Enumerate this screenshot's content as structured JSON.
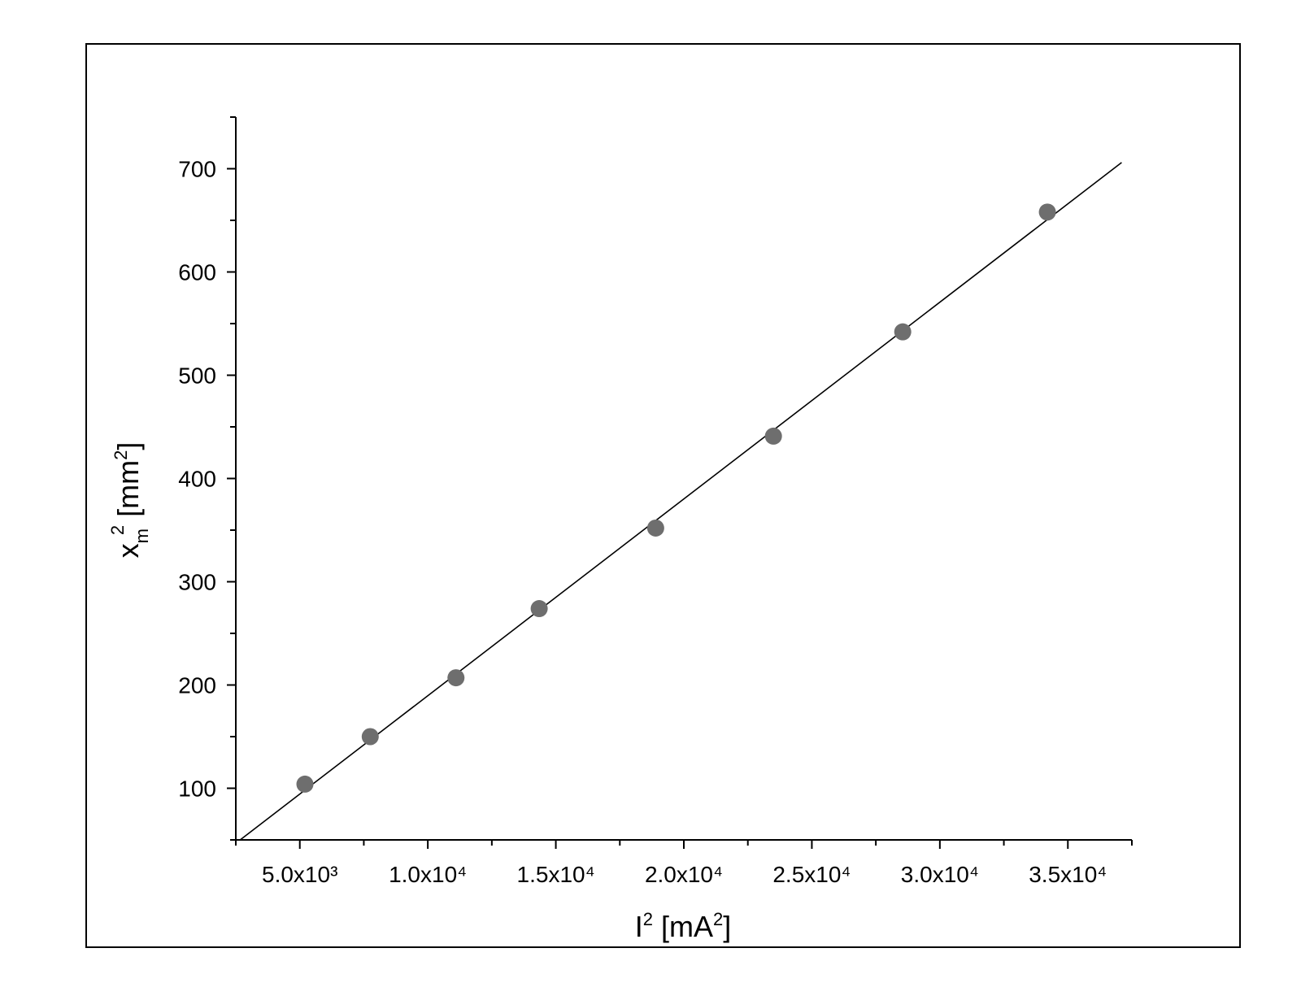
{
  "chart_data": {
    "type": "scatter",
    "xlabel": [
      "I",
      "2",
      " [mA",
      "2",
      "]"
    ],
    "ylabel": [
      "x",
      "m",
      "2",
      " [mm",
      "2",
      "]"
    ],
    "x": [
      5200,
      7750,
      11100,
      14350,
      18900,
      23500,
      28550,
      34200
    ],
    "values": [
      104,
      150,
      207,
      274,
      352,
      441,
      542,
      658
    ],
    "color": "#6e6e6e",
    "fit": {
      "x": [
        2670,
        37100
      ],
      "y": [
        50,
        706
      ],
      "color": "#000000"
    },
    "xlim": [
      2500,
      37500
    ],
    "ylim": [
      50,
      750
    ],
    "xticks": [
      {
        "value": 5000,
        "label": "5.0x10³"
      },
      {
        "value": 10000,
        "label": "1.0x10⁴"
      },
      {
        "value": 15000,
        "label": "1.5x10⁴"
      },
      {
        "value": 20000,
        "label": "2.0x10⁴"
      },
      {
        "value": 25000,
        "label": "2.5x10⁴"
      },
      {
        "value": 30000,
        "label": "3.0x10⁴"
      },
      {
        "value": 35000,
        "label": "3.5x10⁴"
      }
    ],
    "xminorticks": [
      2500,
      7500,
      12500,
      17500,
      22500,
      27500,
      32500,
      37500
    ],
    "yticks": [
      100,
      200,
      300,
      400,
      500,
      600,
      700
    ],
    "yminorticks": [
      50,
      150,
      250,
      350,
      450,
      550,
      650,
      750
    ]
  }
}
